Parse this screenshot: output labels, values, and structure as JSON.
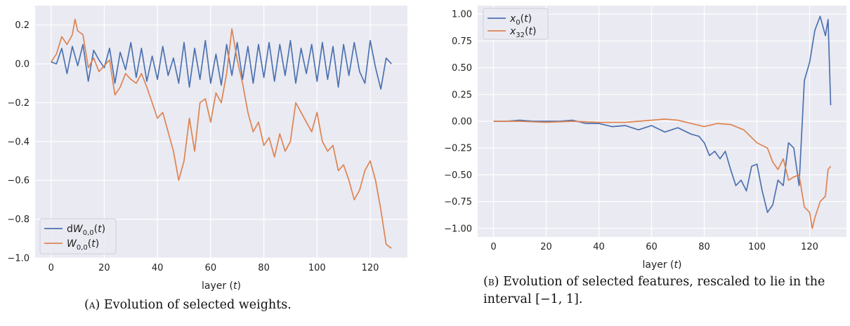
{
  "chart_data": [
    {
      "id": "a",
      "type": "line",
      "xlabel": "layer (t)",
      "ylabel": "",
      "xlim": [
        -6,
        134
      ],
      "ylim": [
        -1.0,
        0.3
      ],
      "xticks": [
        0,
        20,
        40,
        60,
        80,
        100,
        120
      ],
      "yticks": [
        -1.0,
        -0.8,
        -0.6,
        -0.4,
        -0.2,
        0.0,
        0.2
      ],
      "ytick_labels": [
        "−1.0",
        "−0.8",
        "−0.6",
        "−0.4",
        "−0.2",
        "0.0",
        "0.2"
      ],
      "grid": true,
      "legend_position": "lower-left",
      "series": [
        {
          "name": "dW0,0(t)",
          "color": "#4c72b0",
          "x": [
            0,
            2,
            4,
            6,
            8,
            10,
            12,
            14,
            16,
            18,
            20,
            22,
            24,
            26,
            28,
            30,
            32,
            34,
            36,
            38,
            40,
            42,
            44,
            46,
            48,
            50,
            52,
            54,
            56,
            58,
            60,
            62,
            64,
            66,
            68,
            70,
            72,
            74,
            76,
            78,
            80,
            82,
            84,
            86,
            88,
            90,
            92,
            94,
            96,
            98,
            100,
            102,
            104,
            106,
            108,
            110,
            112,
            114,
            116,
            118,
            120,
            122,
            124,
            126,
            128
          ],
          "y": [
            0.01,
            0.0,
            0.08,
            -0.05,
            0.09,
            -0.01,
            0.1,
            -0.09,
            0.07,
            0.02,
            -0.02,
            0.08,
            -0.1,
            0.06,
            -0.03,
            0.11,
            -0.07,
            0.08,
            -0.09,
            0.04,
            -0.08,
            0.09,
            -0.06,
            0.03,
            -0.1,
            0.11,
            -0.12,
            0.08,
            -0.08,
            0.12,
            -0.1,
            0.05,
            -0.11,
            0.1,
            -0.06,
            0.11,
            -0.08,
            0.09,
            -0.1,
            0.1,
            -0.07,
            0.11,
            -0.09,
            0.1,
            -0.06,
            0.12,
            -0.1,
            0.08,
            -0.05,
            0.1,
            -0.09,
            0.11,
            -0.08,
            0.09,
            -0.12,
            0.1,
            -0.06,
            0.11,
            -0.04,
            -0.1,
            0.12,
            -0.02,
            -0.13,
            0.03,
            0.0
          ]
        },
        {
          "name": "W0,0(t)",
          "color": "#dd8452",
          "x": [
            0,
            2,
            4,
            6,
            8,
            9,
            10,
            12,
            14,
            16,
            18,
            20,
            22,
            24,
            26,
            28,
            30,
            32,
            34,
            36,
            38,
            40,
            42,
            44,
            46,
            48,
            50,
            52,
            54,
            56,
            58,
            60,
            62,
            64,
            66,
            68,
            70,
            72,
            74,
            76,
            78,
            80,
            82,
            84,
            86,
            88,
            90,
            92,
            94,
            96,
            98,
            100,
            102,
            104,
            106,
            108,
            110,
            112,
            114,
            116,
            118,
            120,
            122,
            124,
            126,
            128
          ],
          "y": [
            0.01,
            0.05,
            0.14,
            0.1,
            0.15,
            0.23,
            0.17,
            0.15,
            -0.02,
            0.03,
            -0.04,
            -0.01,
            0.02,
            -0.16,
            -0.12,
            -0.05,
            -0.08,
            -0.1,
            -0.05,
            -0.12,
            -0.2,
            -0.28,
            -0.25,
            -0.35,
            -0.45,
            -0.6,
            -0.5,
            -0.28,
            -0.45,
            -0.2,
            -0.18,
            -0.3,
            -0.15,
            -0.2,
            -0.05,
            0.18,
            0.02,
            -0.1,
            -0.25,
            -0.35,
            -0.3,
            -0.42,
            -0.38,
            -0.48,
            -0.36,
            -0.45,
            -0.4,
            -0.2,
            -0.25,
            -0.3,
            -0.35,
            -0.25,
            -0.4,
            -0.45,
            -0.42,
            -0.55,
            -0.52,
            -0.6,
            -0.7,
            -0.65,
            -0.55,
            -0.5,
            -0.6,
            -0.75,
            -0.93,
            -0.95
          ]
        }
      ]
    },
    {
      "id": "b",
      "type": "line",
      "xlabel": "layer (t)",
      "ylabel": "",
      "xlim": [
        -6,
        134
      ],
      "ylim": [
        -1.08,
        1.08
      ],
      "xticks": [
        0,
        20,
        40,
        60,
        80,
        100,
        120
      ],
      "yticks": [
        -1.0,
        -0.75,
        -0.5,
        -0.25,
        0.0,
        0.25,
        0.5,
        0.75,
        1.0
      ],
      "ytick_labels": [
        "−1.00",
        "−0.75",
        "−0.50",
        "−0.25",
        "0.00",
        "0.25",
        "0.50",
        "0.75",
        "1.00"
      ],
      "grid": true,
      "legend_position": "upper-left",
      "series": [
        {
          "name": "x0(t)",
          "color": "#4c72b0",
          "x": [
            0,
            5,
            10,
            15,
            20,
            25,
            30,
            35,
            40,
            45,
            50,
            55,
            60,
            65,
            70,
            75,
            78,
            80,
            82,
            84,
            86,
            88,
            90,
            92,
            94,
            96,
            98,
            100,
            102,
            104,
            106,
            108,
            110,
            112,
            114,
            116,
            118,
            120,
            122,
            124,
            126,
            127,
            128
          ],
          "y": [
            0.0,
            0.0,
            0.01,
            0.0,
            0.0,
            0.0,
            0.01,
            -0.02,
            -0.02,
            -0.05,
            -0.04,
            -0.08,
            -0.04,
            -0.1,
            -0.06,
            -0.12,
            -0.14,
            -0.2,
            -0.32,
            -0.28,
            -0.35,
            -0.28,
            -0.45,
            -0.6,
            -0.55,
            -0.65,
            -0.42,
            -0.4,
            -0.65,
            -0.85,
            -0.78,
            -0.55,
            -0.6,
            -0.2,
            -0.25,
            -0.6,
            0.38,
            0.55,
            0.85,
            0.98,
            0.8,
            0.95,
            0.15
          ]
        },
        {
          "name": "x32(t)",
          "color": "#dd8452",
          "x": [
            0,
            10,
            20,
            30,
            40,
            50,
            60,
            65,
            70,
            75,
            80,
            85,
            90,
            95,
            100,
            104,
            106,
            108,
            110,
            112,
            114,
            116,
            118,
            120,
            121,
            122,
            124,
            126,
            127,
            128
          ],
          "y": [
            0.0,
            0.0,
            -0.01,
            0.0,
            -0.01,
            -0.01,
            0.01,
            0.02,
            0.01,
            -0.02,
            -0.05,
            -0.02,
            -0.03,
            -0.08,
            -0.2,
            -0.25,
            -0.38,
            -0.45,
            -0.35,
            -0.55,
            -0.52,
            -0.5,
            -0.8,
            -0.85,
            -1.0,
            -0.9,
            -0.75,
            -0.7,
            -0.45,
            -0.42
          ]
        }
      ]
    }
  ],
  "captions": {
    "a_tag": "(a)",
    "a_text": "Evolution of selected weights.",
    "b_tag": "(b)",
    "b_text": "Evolution of selected features, rescaled to lie in the interval [−1, 1]."
  }
}
